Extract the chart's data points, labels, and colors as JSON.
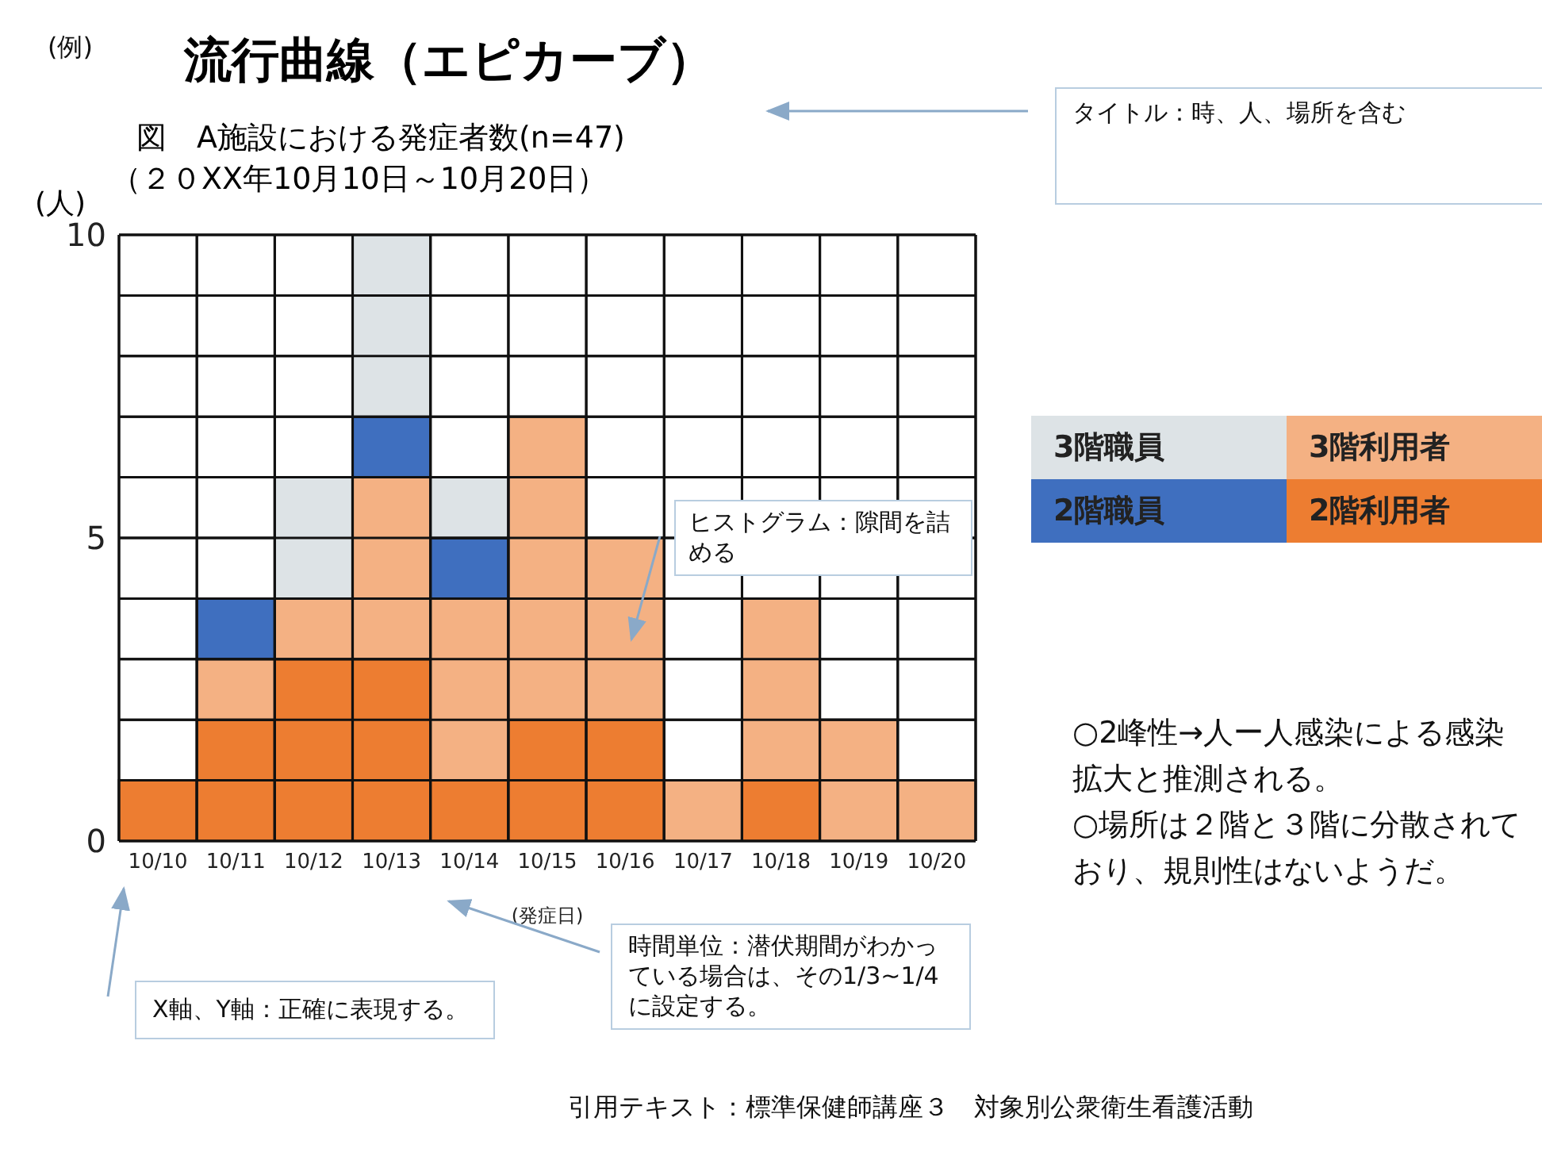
{
  "chart_data": {
    "type": "bar",
    "stacked": true,
    "title": "流行曲線（エピカーブ）",
    "subtitle": "図　A施設における発症者数(n=47)\n（２０XX年10月10日～10月20日）",
    "xlabel": "(発症日)",
    "ylabel": "(人)",
    "categories": [
      "10/10",
      "10/11",
      "10/12",
      "10/13",
      "10/14",
      "10/15",
      "10/16",
      "10/17",
      "10/18",
      "10/19",
      "10/20"
    ],
    "series": [
      {
        "name": "2階利用者",
        "color": "#ed7d31",
        "values": [
          1,
          2,
          3,
          3,
          1,
          2,
          2,
          0,
          1,
          0,
          0
        ]
      },
      {
        "name": "3階利用者",
        "color": "#f4b183",
        "values": [
          0,
          1,
          1,
          3,
          3,
          5,
          3,
          1,
          3,
          2,
          1
        ]
      },
      {
        "name": "2階職員",
        "color": "#3f6fbf",
        "values": [
          0,
          1,
          0,
          1,
          1,
          0,
          0,
          0,
          0,
          0,
          0
        ]
      },
      {
        "name": "3階職員",
        "color": "#dde3e6",
        "values": [
          0,
          0,
          2,
          3,
          1,
          0,
          0,
          0,
          0,
          0,
          0
        ]
      }
    ],
    "ylim": [
      0,
      10
    ],
    "yticks": [
      0,
      {
        "value": 1,
        "label": null
      },
      {
        "value": 2,
        "label": null
      },
      {
        "value": 3,
        "label": null
      },
      {
        "value": 4,
        "label": null
      },
      5,
      {
        "value": 6,
        "label": null
      },
      {
        "value": 7,
        "label": null
      },
      {
        "value": 8,
        "label": null
      },
      {
        "value": 9,
        "label": null
      },
      10
    ],
    "grid": true,
    "legend": "right",
    "annotations": [
      "(例)",
      "タイトル：時、人、場所を含む",
      "ヒストグラム：隙間を詰める",
      "X軸、Y軸：正確に表現する。",
      "時間単位：潜伏期間がわかっている場合は、その1/3~1/4に設定する。",
      "○2峰性→人ー人感染による感染拡大と推測される。\n○場所は２階と３階に分散されており、規則性はないようだ。",
      "引用テキスト：標準保健師講座３　対象別公衆衛生看護活動"
    ]
  }
}
